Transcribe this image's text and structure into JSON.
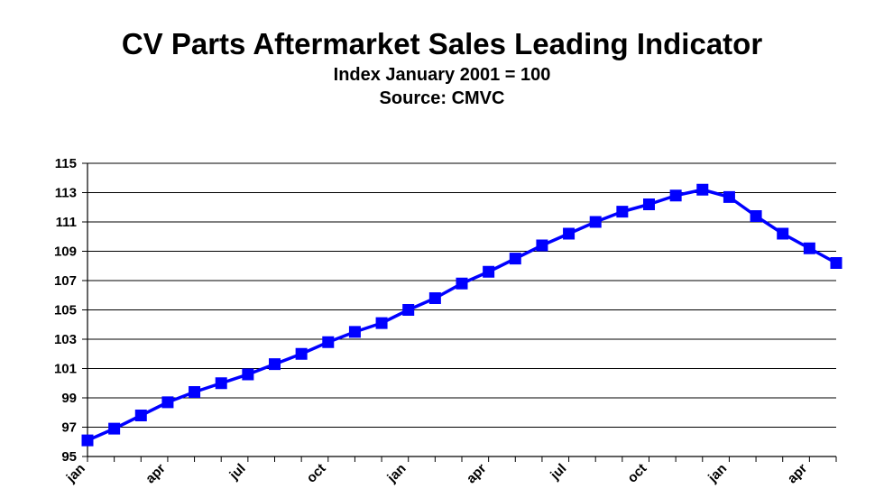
{
  "chart_data": {
    "type": "line",
    "title": "CV Parts Aftermarket Sales Leading Indicator",
    "subtitle": "Index January 2001 = 100",
    "source": "Source: CMVC",
    "xlabel": "",
    "ylabel": "",
    "ylim": [
      95,
      115
    ],
    "yticks": [
      95,
      97,
      99,
      101,
      103,
      105,
      107,
      109,
      111,
      113,
      115
    ],
    "x_tick_labels": [
      "jan",
      "",
      "",
      "apr",
      "",
      "",
      "jul",
      "",
      "",
      "oct",
      "",
      "",
      "jan",
      "",
      "",
      "apr",
      "",
      "",
      "jul",
      "",
      "",
      "oct",
      "",
      "",
      "jan",
      "",
      "",
      "apr",
      ""
    ],
    "grid": "horizontal",
    "legend": "none",
    "series": [
      {
        "color": "#0000ff",
        "marker": "square",
        "values": [
          96.1,
          96.9,
          97.8,
          98.7,
          99.4,
          100.0,
          100.6,
          101.3,
          102.0,
          102.8,
          103.5,
          104.1,
          105.0,
          105.8,
          106.8,
          107.6,
          108.5,
          109.4,
          110.2,
          111.0,
          111.7,
          112.2,
          112.8,
          113.2,
          112.7,
          111.4,
          110.2,
          109.2,
          108.2
        ]
      }
    ]
  }
}
